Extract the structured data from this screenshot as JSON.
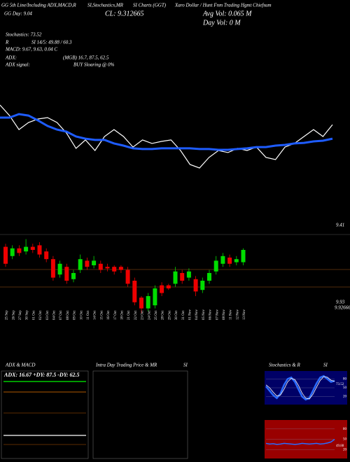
{
  "header": {
    "title_a": "GG 5th Line/Including ADX,MACD,R",
    "title_b": "SI,Stochastics,MR",
    "title_c": "SI Charts (GGT)",
    "title_d": "Xaro Dollar / Hunt Fnm Trading Hgmt Chiefsum",
    "day": "GG Day: 9.04",
    "close": "CL: 9.312665",
    "avg_vol": "Avg Vol: 0.065 M",
    "day_vol": "Day Vol: 0 M",
    "stoch": "Stochastics: 73.52",
    "rsi_r": "R",
    "rsi": "SI 14/5: 49.88 / 60.3",
    "macd": "MACD: 9.67, 9.63, 0.04 C",
    "adx": "ADX:",
    "adx_vals": "(MGB) 16.7, 87.5, 62.5",
    "adx_signal": "ADX signal:",
    "adx_signal_val": "BUY Sloaring @ 0%",
    "price_top": "9.41",
    "price_low": "9.93",
    "price_low2": "9.92666"
  },
  "panels": {
    "adx_title": "ADX & MACD",
    "adx_text": "ADX: 16.67 +DY: 87.5 -DY: 62.5",
    "intra_title": "Intra Day Trading Price & MR",
    "intra_title2": "SI",
    "stoch_title": "Stochastics & R",
    "stoch_title2": "SI",
    "stoch_label": "73.52",
    "rsi_label": "49.88"
  },
  "chart_data": [
    {
      "type": "line",
      "ylim": [
        9.0,
        9.5
      ],
      "series": [
        {
          "color": "#ffffff",
          "values": [
            9.423,
            9.365,
            9.288,
            9.327,
            9.346,
            9.354,
            9.327,
            9.269,
            9.185,
            9.231,
            9.173,
            9.25,
            9.288,
            9.25,
            9.192,
            9.231,
            9.212,
            9.223,
            9.231,
            9.173,
            9.096,
            9.077,
            9.135,
            9.173,
            9.162,
            9.185,
            9.173,
            9.192,
            9.135,
            9.123,
            9.192,
            9.212,
            9.25,
            9.288,
            9.25,
            9.315
          ]
        },
        {
          "color": "#1e5cff",
          "values": [
            9.354,
            9.354,
            9.373,
            9.365,
            9.338,
            9.308,
            9.288,
            9.277,
            9.25,
            9.238,
            9.231,
            9.231,
            9.212,
            9.2,
            9.185,
            9.181,
            9.181,
            9.185,
            9.185,
            9.185,
            9.185,
            9.181,
            9.181,
            9.177,
            9.177,
            9.181,
            9.185,
            9.192,
            9.192,
            9.2,
            9.204,
            9.212,
            9.215,
            9.223,
            9.227,
            9.238
          ]
        }
      ]
    },
    {
      "type": "candlestick",
      "ylim": [
        9.0,
        9.5
      ],
      "up_color": "#00dd00",
      "down_color": "#ee0000",
      "categories": [
        "25 Sep",
        "26 Sep",
        "27 Sep",
        "30 Sep",
        "01 Oct",
        "02 Oct",
        "03 Oct",
        "04 Oct",
        "07 Oct",
        "08 Oct",
        "09 Oct",
        "10 Oct",
        "11 Oct",
        "14 Oct",
        "15 Oct",
        "16 Oct",
        "17 Oct",
        "18 Oct",
        "21 Oct",
        "22 Oct",
        "23 Oct",
        "24 Oct",
        "25 Oct",
        "28 Oct",
        "29 Oct",
        "30 Oct",
        "31 Oct",
        "01 Nov",
        "04 Nov",
        "05 Nov",
        "06 Nov",
        "07 Nov",
        "08 Nov",
        "11 Nov",
        "12 Nov",
        "13 Nov"
      ],
      "open": [
        9.42,
        9.36,
        9.41,
        9.39,
        9.42,
        9.43,
        9.39,
        9.34,
        9.24,
        9.29,
        9.21,
        9.27,
        9.33,
        9.3,
        9.31,
        9.29,
        9.29,
        9.29,
        9.27,
        9.2,
        9.09,
        9.02,
        9.04,
        9.17,
        9.17,
        9.18,
        9.25,
        9.22,
        9.21,
        9.14,
        9.2,
        9.26,
        9.31,
        9.35,
        9.32,
        9.32
      ],
      "high": [
        9.44,
        9.43,
        9.43,
        9.47,
        9.44,
        9.45,
        9.41,
        9.36,
        9.33,
        9.31,
        9.27,
        9.37,
        9.35,
        9.36,
        9.33,
        9.31,
        9.3,
        9.3,
        9.29,
        9.22,
        9.1,
        9.12,
        9.17,
        9.19,
        9.18,
        9.29,
        9.27,
        9.28,
        9.23,
        9.22,
        9.27,
        9.36,
        9.38,
        9.37,
        9.36,
        9.41
      ],
      "low": [
        9.29,
        9.34,
        9.36,
        9.37,
        9.38,
        9.35,
        9.32,
        9.2,
        9.22,
        9.18,
        9.19,
        9.25,
        9.27,
        9.28,
        9.25,
        9.26,
        9.24,
        9.25,
        9.16,
        9.04,
        8.99,
        9.0,
        9.02,
        9.1,
        9.14,
        9.16,
        9.18,
        9.2,
        9.1,
        9.12,
        9.18,
        9.24,
        9.29,
        9.29,
        9.3,
        9.3
      ],
      "close": [
        9.31,
        9.41,
        9.38,
        9.42,
        9.4,
        9.37,
        9.34,
        9.22,
        9.31,
        9.2,
        9.25,
        9.34,
        9.29,
        9.33,
        9.27,
        9.28,
        9.26,
        9.27,
        9.18,
        9.06,
        9.02,
        9.1,
        9.15,
        9.12,
        9.15,
        9.26,
        9.2,
        9.26,
        9.13,
        9.2,
        9.25,
        9.33,
        9.36,
        9.31,
        9.34,
        9.4
      ]
    },
    {
      "type": "line",
      "ylim": [
        0,
        100
      ],
      "yticks": [
        20,
        50,
        80
      ],
      "series": [
        {
          "color": "#2a6bff",
          "values": [
            55,
            40,
            25,
            15,
            30,
            60,
            80,
            85,
            70,
            45,
            20,
            10,
            15,
            40,
            65,
            85,
            90,
            80,
            70,
            73.52
          ]
        },
        {
          "color": "#ffffff",
          "values": [
            60,
            50,
            35,
            22,
            25,
            45,
            70,
            82,
            78,
            58,
            32,
            15,
            12,
            28,
            52,
            75,
            88,
            86,
            76,
            72
          ]
        }
      ]
    },
    {
      "type": "line",
      "ylim": [
        0,
        100
      ],
      "yticks": [
        20,
        50,
        80
      ],
      "series": [
        {
          "color": "#2a6bff",
          "values": [
            38,
            36,
            37,
            35,
            36,
            38,
            37,
            36,
            35,
            36,
            38,
            37,
            36,
            37,
            38,
            36,
            37,
            39,
            42,
            49.88
          ]
        }
      ]
    }
  ]
}
